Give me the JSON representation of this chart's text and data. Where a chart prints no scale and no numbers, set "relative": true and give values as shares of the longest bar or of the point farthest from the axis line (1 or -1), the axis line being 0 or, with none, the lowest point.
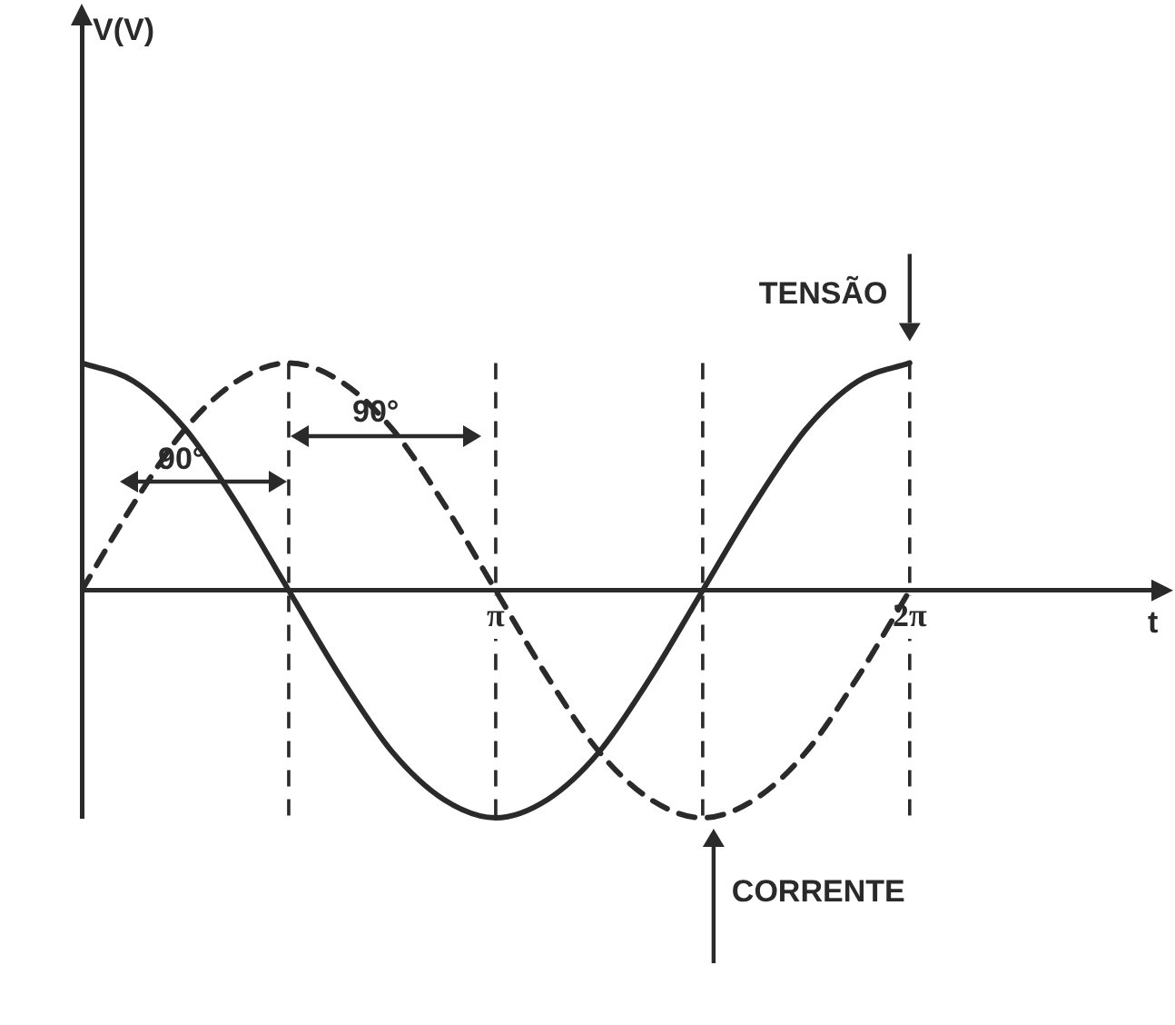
{
  "chart_data": {
    "type": "line",
    "relative": true,
    "xlabel": "t",
    "x": [
      0,
      0.3927,
      0.7854,
      1.1781,
      1.5708,
      1.9635,
      2.3562,
      2.7489,
      3.1416,
      3.5343,
      3.927,
      4.3197,
      4.7124,
      5.1051,
      5.4978,
      5.8905,
      6.2832
    ],
    "xlim": [
      0,
      8.2
    ],
    "xticks": [
      {
        "value": 3.1416,
        "label": "π"
      },
      {
        "value": 6.2832,
        "label": "2π"
      }
    ],
    "series": [
      {
        "name": "TENSÃO",
        "color": "#2a2a2a",
        "line_style": "solid",
        "values": [
          1,
          0.92,
          0.71,
          0.38,
          0,
          -0.38,
          -0.71,
          -0.92,
          -1,
          -0.92,
          -0.71,
          -0.38,
          0,
          0.38,
          0.71,
          0.92,
          1
        ]
      },
      {
        "name": "CORRENTE",
        "color": "#2a2a2a",
        "line_style": "dashed",
        "values": [
          0,
          0.38,
          0.71,
          0.92,
          1,
          0.92,
          0.71,
          0.38,
          0,
          -0.38,
          -0.71,
          -0.92,
          -1,
          -0.92,
          -0.71,
          -0.38,
          0
        ]
      }
    ],
    "ref_lines": [
      {
        "axis": "x",
        "value": 1.5708,
        "line_style": "dashed"
      },
      {
        "axis": "x",
        "value": 3.1416,
        "line_style": "dashed"
      },
      {
        "axis": "x",
        "value": 4.7124,
        "line_style": "dashed"
      },
      {
        "axis": "x",
        "value": 6.2832,
        "line_style": "dashed"
      }
    ],
    "annotations": [
      "V(V)",
      "90°",
      "90°"
    ],
    "marker": "none",
    "grid": false
  }
}
